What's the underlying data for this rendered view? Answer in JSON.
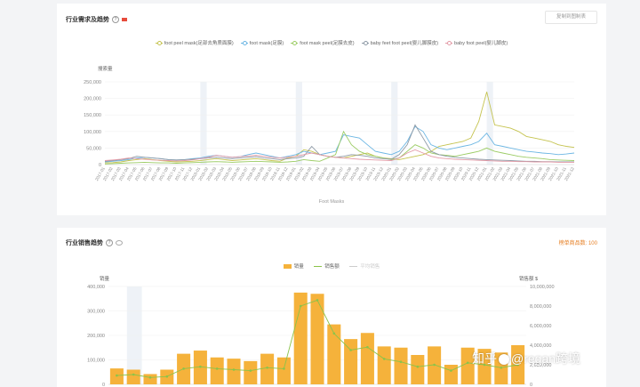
{
  "section1": {
    "title": "行业需求及趋势",
    "copy_button": "复制到图制表",
    "y_unit": "搜索量",
    "x_axis_name": "Foot Masks",
    "legend": [
      {
        "name": "foot peel mask(足部去角质面膜)",
        "color": "#c5c34f"
      },
      {
        "name": "foot mask(足膜)",
        "color": "#6cb6e3"
      },
      {
        "name": "foot mask peel(足膜去皮)",
        "color": "#9ccc65"
      },
      {
        "name": "baby feet foot peel(婴儿脚膜皮)",
        "color": "#8e9aa6"
      },
      {
        "name": "baby foot peel(婴儿脚皮)",
        "color": "#e39aa6"
      }
    ]
  },
  "section2": {
    "title": "行业销售趋势",
    "rank_text": "榜单商品数: 100",
    "left_unit": "销量",
    "right_unit": "销售额 $",
    "legend": {
      "bar": "销量",
      "line": "销售额",
      "avg": "平均销售"
    }
  },
  "watermark": {
    "text1": "知乎",
    "text2": "@regan跨境"
  },
  "chart_data": [
    {
      "type": "line",
      "ylim": [
        0,
        250000
      ],
      "y_ticks": [
        "0",
        "50,000",
        "100,000",
        "150,000",
        "200,000",
        "250,000"
      ],
      "x": [
        "2017-01",
        "2017-02",
        "2017-03",
        "2017-04",
        "2017-05",
        "2017-06",
        "2017-07",
        "2017-08",
        "2017-09",
        "2017-10",
        "2017-11",
        "2017-12",
        "2018-01",
        "2018-02",
        "2018-03",
        "2018-04",
        "2018-05",
        "2018-06",
        "2018-07",
        "2018-08",
        "2018-09",
        "2018-10",
        "2018-11",
        "2018-12",
        "2019-01",
        "2019-02",
        "2019-03",
        "2019-04",
        "2019-05",
        "2019-06",
        "2019-07",
        "2019-08",
        "2019-09",
        "2019-10",
        "2019-11",
        "2019-12",
        "2020-01",
        "2020-02",
        "2020-03",
        "2020-04",
        "2020-05",
        "2020-06",
        "2020-07",
        "2020-08",
        "2020-09",
        "2020-10",
        "2020-11",
        "2020-12",
        "2021-01",
        "2021-02",
        "2021-03",
        "2021-04",
        "2021-05",
        "2021-06",
        "2021-07",
        "2021-08",
        "2021-09",
        "2021-10",
        "2021-11",
        "2021-12"
      ],
      "series": [
        {
          "name": "foot peel mask(足部去角质面膜)",
          "values": [
            5000,
            6000,
            8000,
            12000,
            15000,
            18000,
            15000,
            12000,
            10000,
            8000,
            9000,
            10000,
            12000,
            15000,
            18000,
            15000,
            12000,
            14000,
            16000,
            18000,
            15000,
            12000,
            10000,
            20000,
            25000,
            45000,
            40000,
            30000,
            25000,
            22000,
            20000,
            25000,
            30000,
            35000,
            25000,
            20000,
            18000,
            15000,
            20000,
            25000,
            30000,
            40000,
            55000,
            60000,
            65000,
            70000,
            80000,
            130000,
            220000,
            120000,
            115000,
            110000,
            100000,
            85000,
            80000,
            75000,
            70000,
            60000,
            55000,
            52000
          ]
        },
        {
          "name": "foot mask(足膜)",
          "values": [
            8000,
            10000,
            12000,
            15000,
            20000,
            22000,
            20000,
            18000,
            15000,
            14000,
            15000,
            18000,
            20000,
            25000,
            28000,
            25000,
            22000,
            24000,
            30000,
            35000,
            30000,
            25000,
            20000,
            25000,
            30000,
            40000,
            35000,
            30000,
            35000,
            40000,
            90000,
            85000,
            80000,
            60000,
            40000,
            35000,
            30000,
            40000,
            70000,
            115000,
            100000,
            60000,
            50000,
            45000,
            50000,
            55000,
            60000,
            70000,
            95000,
            60000,
            55000,
            50000,
            45000,
            40000,
            38000,
            35000,
            33000,
            30000,
            32000,
            35000
          ]
        },
        {
          "name": "foot mask peel(足膜去皮)",
          "values": [
            2000,
            3000,
            4000,
            5000,
            6000,
            7000,
            6000,
            5000,
            5000,
            4000,
            5000,
            6000,
            7000,
            8000,
            9000,
            8000,
            7000,
            8000,
            9000,
            10000,
            9000,
            8000,
            7000,
            8000,
            10000,
            15000,
            12000,
            10000,
            20000,
            30000,
            100000,
            60000,
            40000,
            30000,
            25000,
            20000,
            15000,
            20000,
            40000,
            60000,
            50000,
            35000,
            30000,
            28000,
            25000,
            30000,
            35000,
            40000,
            50000,
            40000,
            35000,
            30000,
            25000,
            22000,
            20000,
            18000,
            15000,
            14000,
            13000,
            12000
          ]
        },
        {
          "name": "baby feet foot peel(婴儿脚膜皮)",
          "values": [
            10000,
            12000,
            15000,
            18000,
            25000,
            22000,
            20000,
            18000,
            15000,
            14000,
            15000,
            16000,
            18000,
            20000,
            22000,
            20000,
            18000,
            20000,
            22000,
            24000,
            20000,
            18000,
            15000,
            18000,
            20000,
            25000,
            55000,
            30000,
            25000,
            22000,
            25000,
            30000,
            28000,
            25000,
            20000,
            18000,
            16000,
            30000,
            60000,
            120000,
            80000,
            40000,
            30000,
            25000,
            22000,
            20000,
            18000,
            16000,
            15000,
            14000,
            13000,
            12000,
            11000,
            10000,
            10000,
            9000,
            9000,
            8000,
            8000,
            8000
          ]
        },
        {
          "name": "baby foot peel(婴儿脚皮)",
          "values": [
            12000,
            14000,
            16000,
            20000,
            18000,
            16000,
            14000,
            13000,
            12000,
            11000,
            12000,
            14000,
            18000,
            22000,
            28000,
            25000,
            22000,
            24000,
            26000,
            28000,
            25000,
            22000,
            20000,
            22000,
            25000,
            30000,
            35000,
            30000,
            25000,
            22000,
            20000,
            18000,
            16000,
            15000,
            14000,
            13000,
            12000,
            20000,
            35000,
            45000,
            35000,
            25000,
            20000,
            18000,
            16000,
            15000,
            14000,
            13000,
            12000,
            11000,
            10000,
            10000,
            9000,
            9000,
            8000,
            8000,
            8000,
            7000,
            7000,
            7000
          ]
        }
      ]
    },
    {
      "type": "bar",
      "left_ylim": [
        0,
        400000
      ],
      "left_ticks": [
        "0",
        "100,000",
        "200,000",
        "300,000",
        "400,000"
      ],
      "right_ylim": [
        0,
        10000000
      ],
      "right_ticks": [
        "0",
        "2,000,000",
        "4,000,000",
        "6,000,000",
        "8,000,000",
        "10,000,000"
      ],
      "series": [
        {
          "name": "销量",
          "values": [
            65000,
            60000,
            42000,
            60000,
            125000,
            138000,
            110000,
            105000,
            95000,
            125000,
            110000,
            375000,
            370000,
            245000,
            185000,
            210000,
            155000,
            150000,
            120000,
            155000,
            80000,
            150000,
            145000,
            130000,
            160000
          ]
        },
        {
          "name": "销售额",
          "values": [
            900000,
            1000000,
            700000,
            800000,
            1600000,
            1800000,
            1600000,
            1500000,
            1400000,
            1700000,
            1600000,
            8000000,
            8600000,
            5200000,
            3500000,
            3800000,
            2600000,
            2300000,
            1800000,
            2000000,
            1400000,
            2200000,
            2000000,
            1700000,
            2000000
          ]
        }
      ]
    }
  ]
}
